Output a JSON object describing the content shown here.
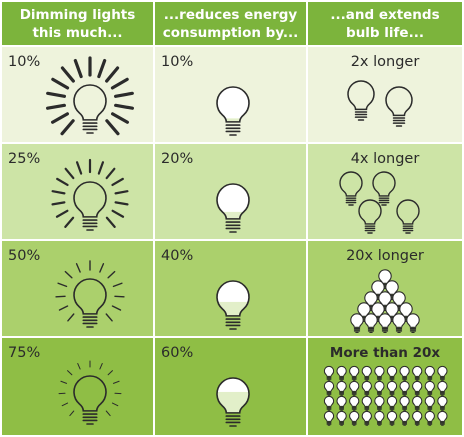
{
  "headers": [
    "Dimming lights this much...",
    "...reduces energy consumption by...",
    "...and extends bulb life..."
  ],
  "rows": [
    {
      "dim": "10%",
      "energy": "10%",
      "life": "2x longer",
      "bulb_count": 2,
      "fill": 0.1
    },
    {
      "dim": "25%",
      "energy": "20%",
      "life": "4x longer",
      "bulb_count": 4,
      "fill": 0.2
    },
    {
      "dim": "50%",
      "energy": "40%",
      "life": "20x longer",
      "bulb_count": 20,
      "fill": 0.4
    },
    {
      "dim": "75%",
      "energy": "60%",
      "life": "More than 20x",
      "bulb_count": 40,
      "fill": 0.6
    }
  ],
  "colors": {
    "header": "#7cb43c",
    "row_backgrounds": [
      "#eef3dc",
      "#cde4a6",
      "#abd06c",
      "#8fbe45"
    ],
    "bulb_outline": "#2b2b2b",
    "bulb_fill": "#e2efc9"
  },
  "icons": [
    "radiating-lightbulb-icon",
    "filled-lightbulb-icon",
    "small-lightbulb-icon"
  ]
}
